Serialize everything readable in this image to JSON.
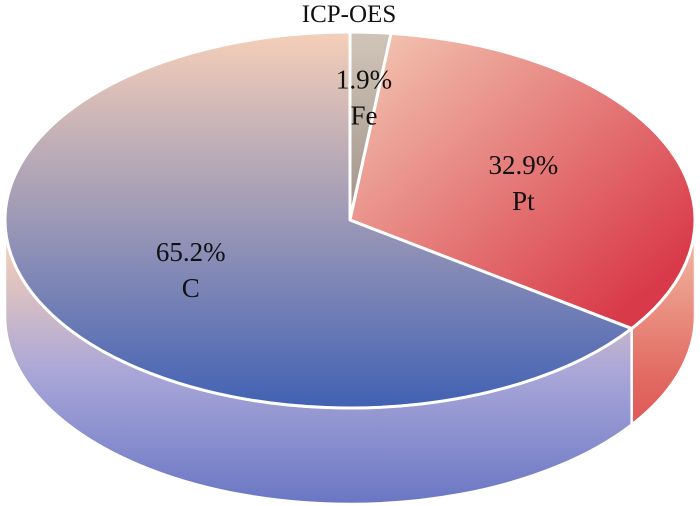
{
  "chart_data": {
    "type": "pie",
    "title": "ICP-OES",
    "slices": [
      {
        "label": "Fe",
        "value": 1.9,
        "value_label": "1.9%",
        "color_light": "#cfc3b7",
        "color_dark": "#6b5e52"
      },
      {
        "label": "Pt",
        "value": 32.9,
        "value_label": "32.9%",
        "color_light": "#f3c8b3",
        "color_dark": "#d93a49"
      },
      {
        "label": "C",
        "value": 65.2,
        "value_label": "65.2%",
        "color_light": "#f2cdb8",
        "color_dark": "#3e5fb4"
      }
    ],
    "style": "3d-tilted",
    "legend": "none"
  }
}
